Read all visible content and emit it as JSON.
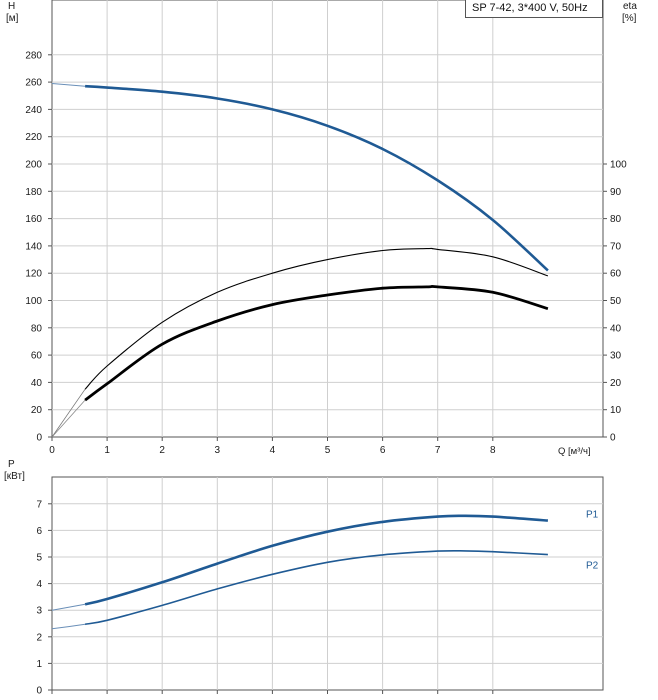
{
  "chart_data": [
    {
      "type": "line",
      "legend": "SP 7-42, 3*400 V, 50Hz",
      "xlabel": "Q [м³/ч]",
      "xlim": [
        0,
        9.2
      ],
      "x_ticks": [
        0,
        1,
        2,
        3,
        4,
        5,
        6,
        7,
        8
      ],
      "y_axis_left": {
        "label_line1": "H",
        "label_line2": "[м]",
        "ylim": [
          0,
          290
        ],
        "ticks": [
          0,
          20,
          40,
          60,
          80,
          100,
          120,
          140,
          160,
          180,
          200,
          220,
          240,
          260,
          280
        ]
      },
      "y_axis_right": {
        "label_line1": "eta",
        "label_line2": "[%]",
        "ylim": [
          0,
          145
        ],
        "ticks": [
          0,
          10,
          20,
          30,
          40,
          50,
          60,
          70,
          80,
          90,
          100
        ]
      },
      "grid": true,
      "colors": {
        "head": "#1f5a94",
        "efficiency": "#000000",
        "grid": "#cfcfcf"
      },
      "series": [
        {
          "axis": "left",
          "style": "head",
          "x": [
            0,
            0.6,
            1,
            2,
            3,
            4,
            5,
            6,
            7,
            8,
            9
          ],
          "y": [
            259,
            257,
            256,
            253,
            248,
            240,
            228,
            211,
            188,
            159,
            122
          ]
        },
        {
          "axis": "right",
          "style": "eff-thin",
          "x": [
            0,
            0.6,
            1,
            2,
            3,
            4,
            5,
            6,
            6.8,
            7,
            8,
            9
          ],
          "y": [
            0,
            17.5,
            26,
            42,
            53,
            60,
            65,
            68.3,
            69,
            68.7,
            66,
            59
          ]
        },
        {
          "axis": "right",
          "style": "eff-thick",
          "x": [
            0.6,
            1,
            2,
            3,
            4,
            5,
            6,
            6.8,
            7,
            8,
            9
          ],
          "y": [
            13.5,
            19.5,
            34,
            42.5,
            48.5,
            52,
            54.5,
            55,
            55,
            53,
            47
          ]
        }
      ]
    },
    {
      "type": "line",
      "ylabel_line1": "P",
      "ylabel_line2": "[кВт]",
      "xlim": [
        0,
        9.2
      ],
      "ylim": [
        0,
        8
      ],
      "y_ticks": [
        0,
        1,
        2,
        3,
        4,
        5,
        6,
        7
      ],
      "grid": true,
      "colors": {
        "power": "#1f5a94",
        "grid": "#cfcfcf"
      },
      "series": [
        {
          "name": "P1",
          "x": [
            0,
            0.6,
            1,
            2,
            3,
            4,
            5,
            6,
            7,
            7.5,
            8,
            9
          ],
          "y": [
            3,
            3.22,
            3.42,
            4.05,
            4.75,
            5.42,
            5.95,
            6.32,
            6.52,
            6.55,
            6.52,
            6.37
          ]
        },
        {
          "name": "P2",
          "x": [
            0,
            0.6,
            1,
            2,
            3,
            4,
            5,
            6,
            7,
            7.5,
            8,
            9
          ],
          "y": [
            2.3,
            2.47,
            2.62,
            3.18,
            3.8,
            4.35,
            4.8,
            5.08,
            5.22,
            5.23,
            5.2,
            5.09
          ]
        }
      ]
    }
  ]
}
